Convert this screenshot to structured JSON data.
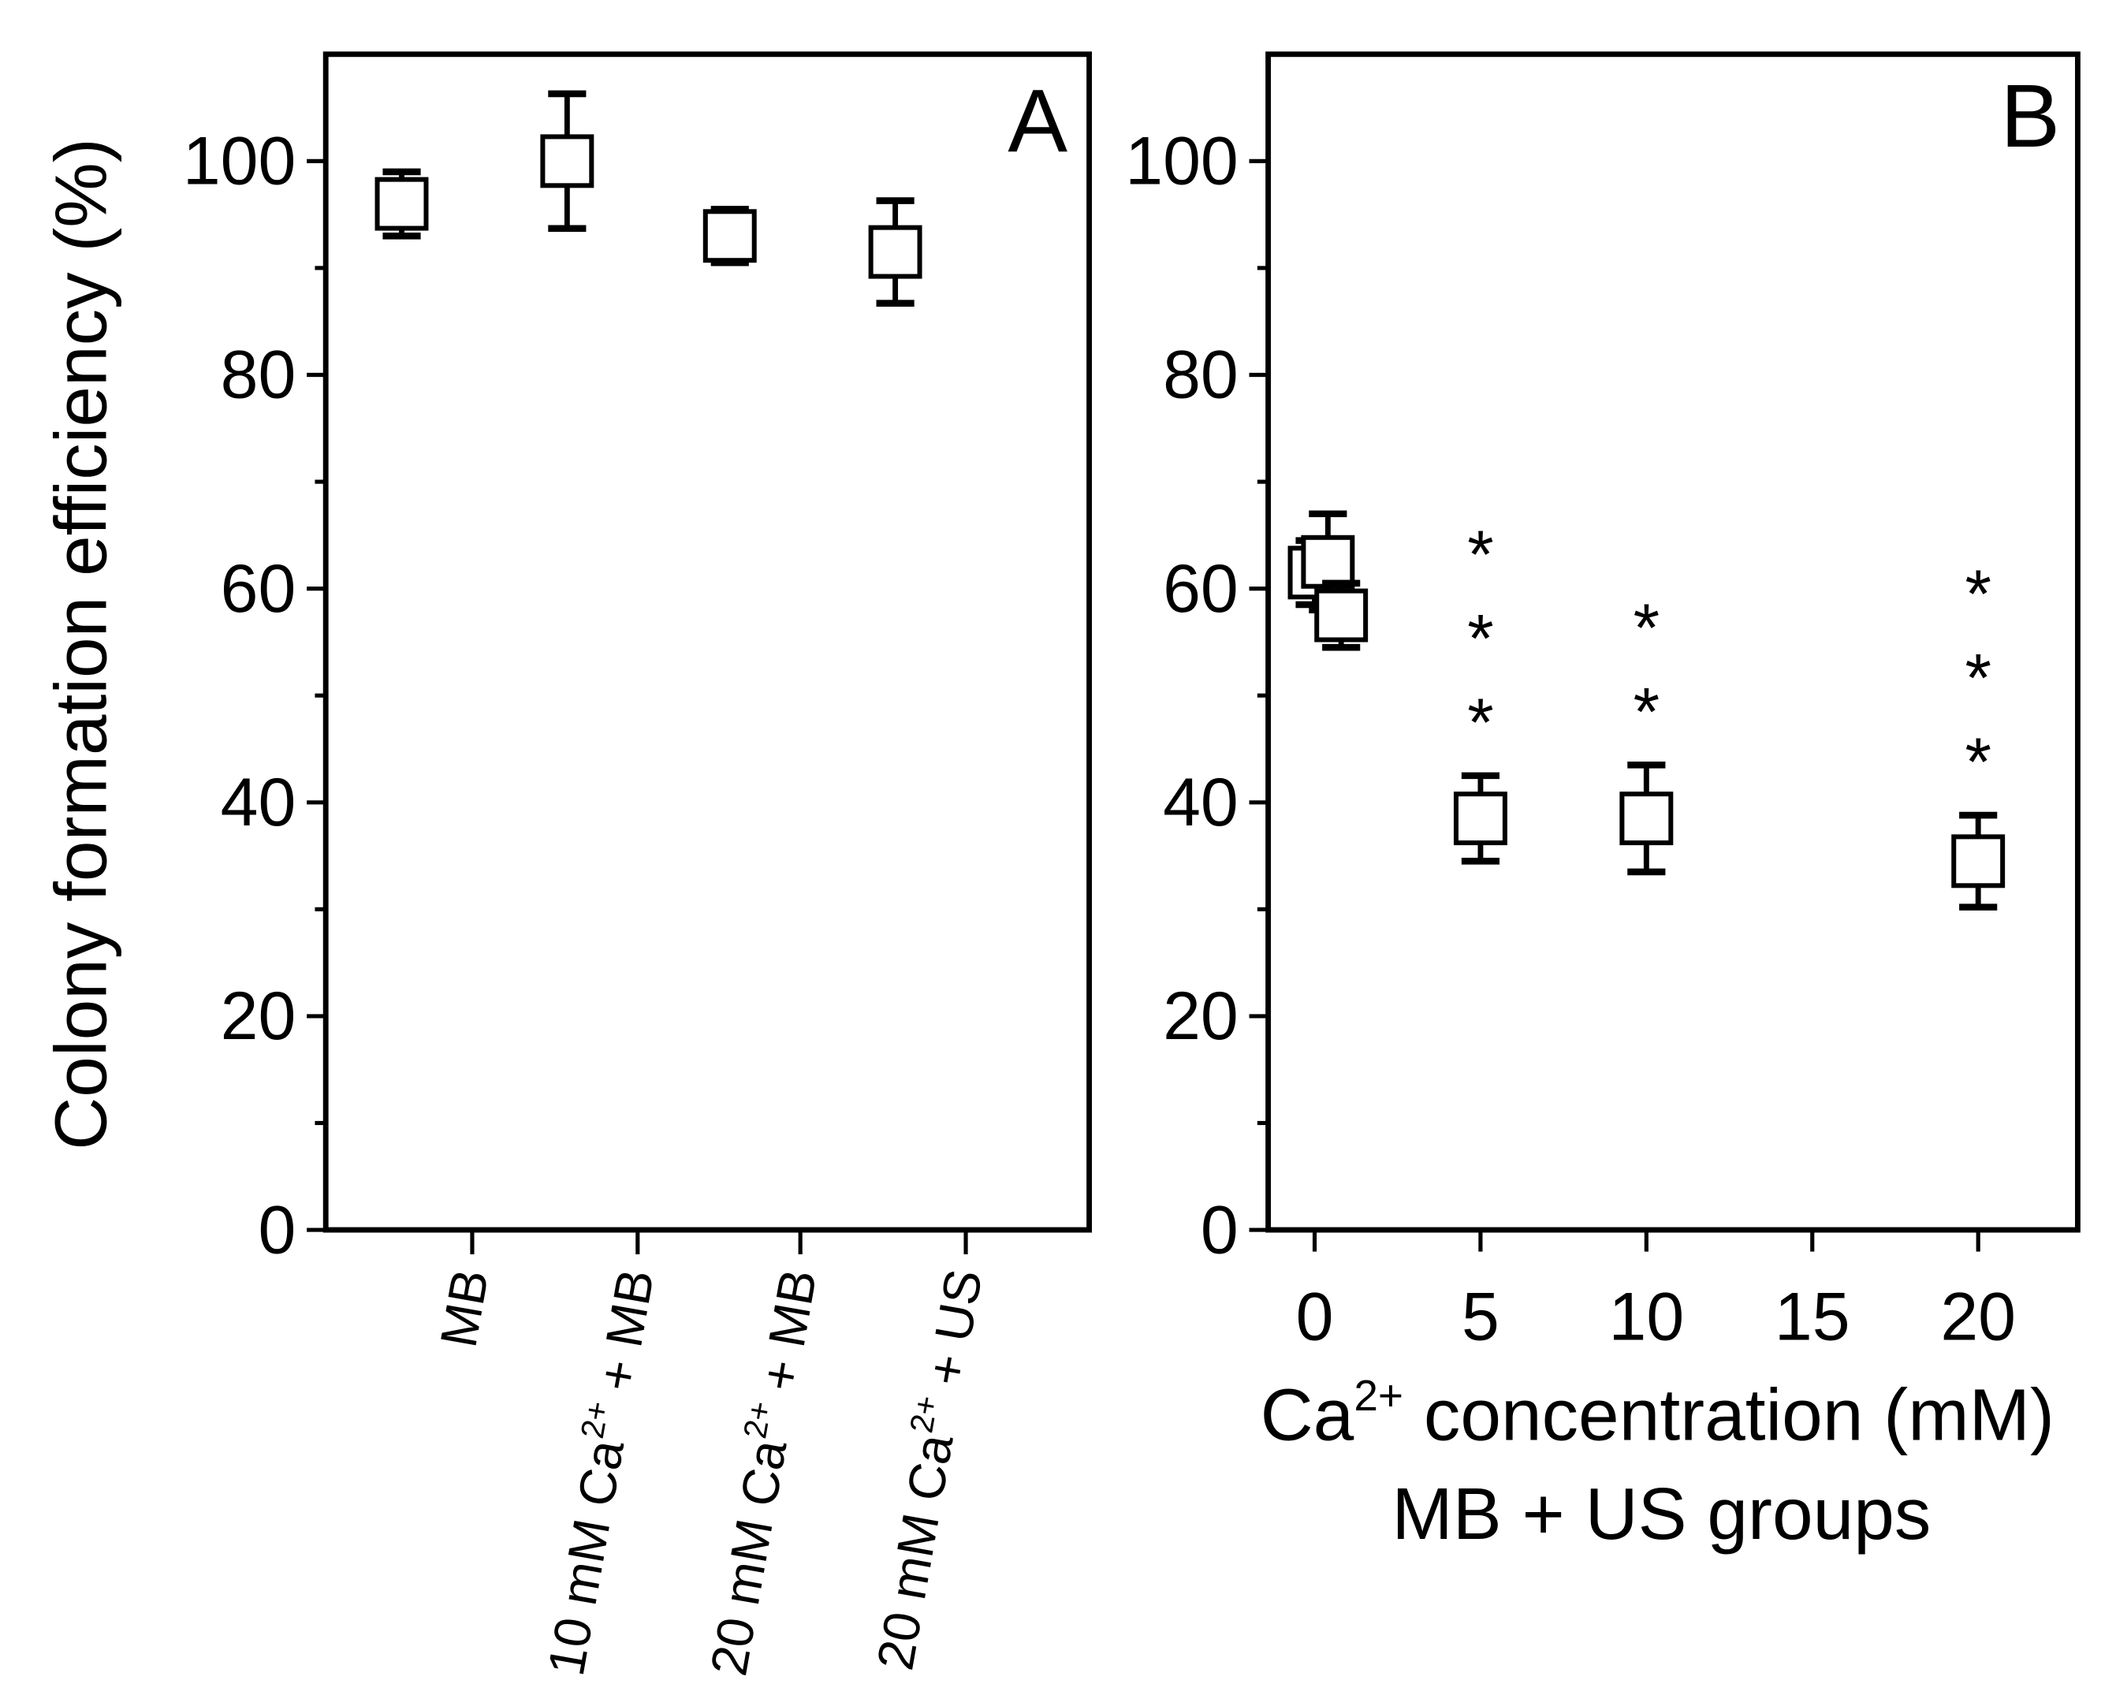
{
  "chart_data": [
    {
      "type": "scatter",
      "panel_label": "A",
      "ylabel": "Colony formation efficiency (%)",
      "ylim": [
        0,
        110
      ],
      "yticks": [
        "0",
        "20",
        "40",
        "60",
        "80",
        "100"
      ],
      "marker": "open-square",
      "categories": [
        {
          "prefix": "MB",
          "sup": "",
          "suffix": ""
        },
        {
          "prefix": "10 mM Ca",
          "sup": "2+",
          "suffix": " + MB"
        },
        {
          "prefix": "20 mM Ca",
          "sup": "2+",
          "suffix": " + MB"
        },
        {
          "prefix": "20 mM Ca",
          "sup": "2+",
          "suffix": " + US"
        }
      ],
      "values": [
        96,
        100,
        93,
        91.5
      ],
      "errors": [
        3,
        6.3,
        2.5,
        4.8
      ]
    },
    {
      "type": "scatter",
      "panel_label": "B",
      "xlabel_prefix": "Ca",
      "xlabel_sup": "2+",
      "xlabel_suffix": " concentration (mM)",
      "xlabel_line2": "MB + US  groups",
      "xlim": [
        -1.4,
        23
      ],
      "ylim": [
        0,
        110
      ],
      "xticks": [
        "0",
        "5",
        "10",
        "15",
        "20"
      ],
      "yticks": [
        "0",
        "20",
        "40",
        "60",
        "80",
        "100"
      ],
      "marker": "open-square",
      "points": [
        {
          "x": 0,
          "y": 61.5,
          "err": 3
        },
        {
          "x": 0.4,
          "y": 62.5,
          "err": 4.5
        },
        {
          "x": 0.8,
          "y": 57.5,
          "err": 3
        },
        {
          "x": 5,
          "y": 38.5,
          "err": 4,
          "significance": "***"
        },
        {
          "x": 10,
          "y": 38.5,
          "err": 5,
          "significance": "**"
        },
        {
          "x": 20,
          "y": 34.5,
          "err": 4.3,
          "significance": "***"
        }
      ]
    }
  ]
}
